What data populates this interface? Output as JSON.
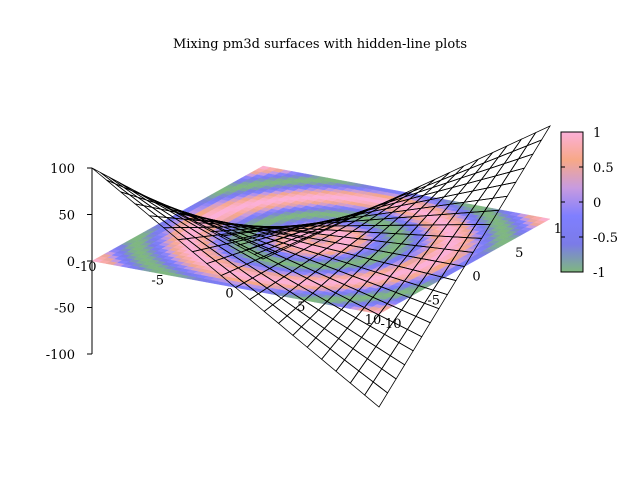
{
  "chart_data": {
    "type": "surface3d",
    "title": "Mixing pm3d surfaces with hidden-line plots",
    "xlabel": "",
    "ylabel": "",
    "zlabel": "",
    "x_range": [
      -10,
      10
    ],
    "y_range": [
      -10,
      10
    ],
    "z_range": [
      -100,
      100
    ],
    "x_ticks": [
      "-10",
      "-5",
      "0",
      "5",
      "10"
    ],
    "y_ticks": [
      "-10",
      "-5",
      "0",
      "5",
      "10"
    ],
    "z_ticks": [
      "100",
      "50",
      "0",
      "-50",
      "-100"
    ],
    "x_tick_values": [
      -10,
      -5,
      0,
      5,
      10
    ],
    "y_tick_values": [
      -10,
      -5,
      0,
      5,
      10
    ],
    "z_tick_values": [
      100,
      50,
      0,
      -50,
      -100
    ],
    "colorbar": {
      "range": [
        -1,
        1
      ],
      "ticks": [
        "1",
        "0.5",
        "0",
        "-0.5",
        "-1"
      ],
      "tick_values": [
        1,
        0.5,
        0,
        -0.5,
        -1
      ],
      "palette": [
        "#7fb87f",
        "#7b7be8",
        "#7f7fff",
        "#c79be0",
        "#f7a887",
        "#fcb0d8"
      ]
    },
    "series": [
      {
        "kind": "pm3d",
        "expression": "sin(sqrt(x^2+y^2))",
        "plane_z": 0
      },
      {
        "kind": "hidden-line mesh",
        "expression": "x*y",
        "grid": 20
      }
    ]
  }
}
